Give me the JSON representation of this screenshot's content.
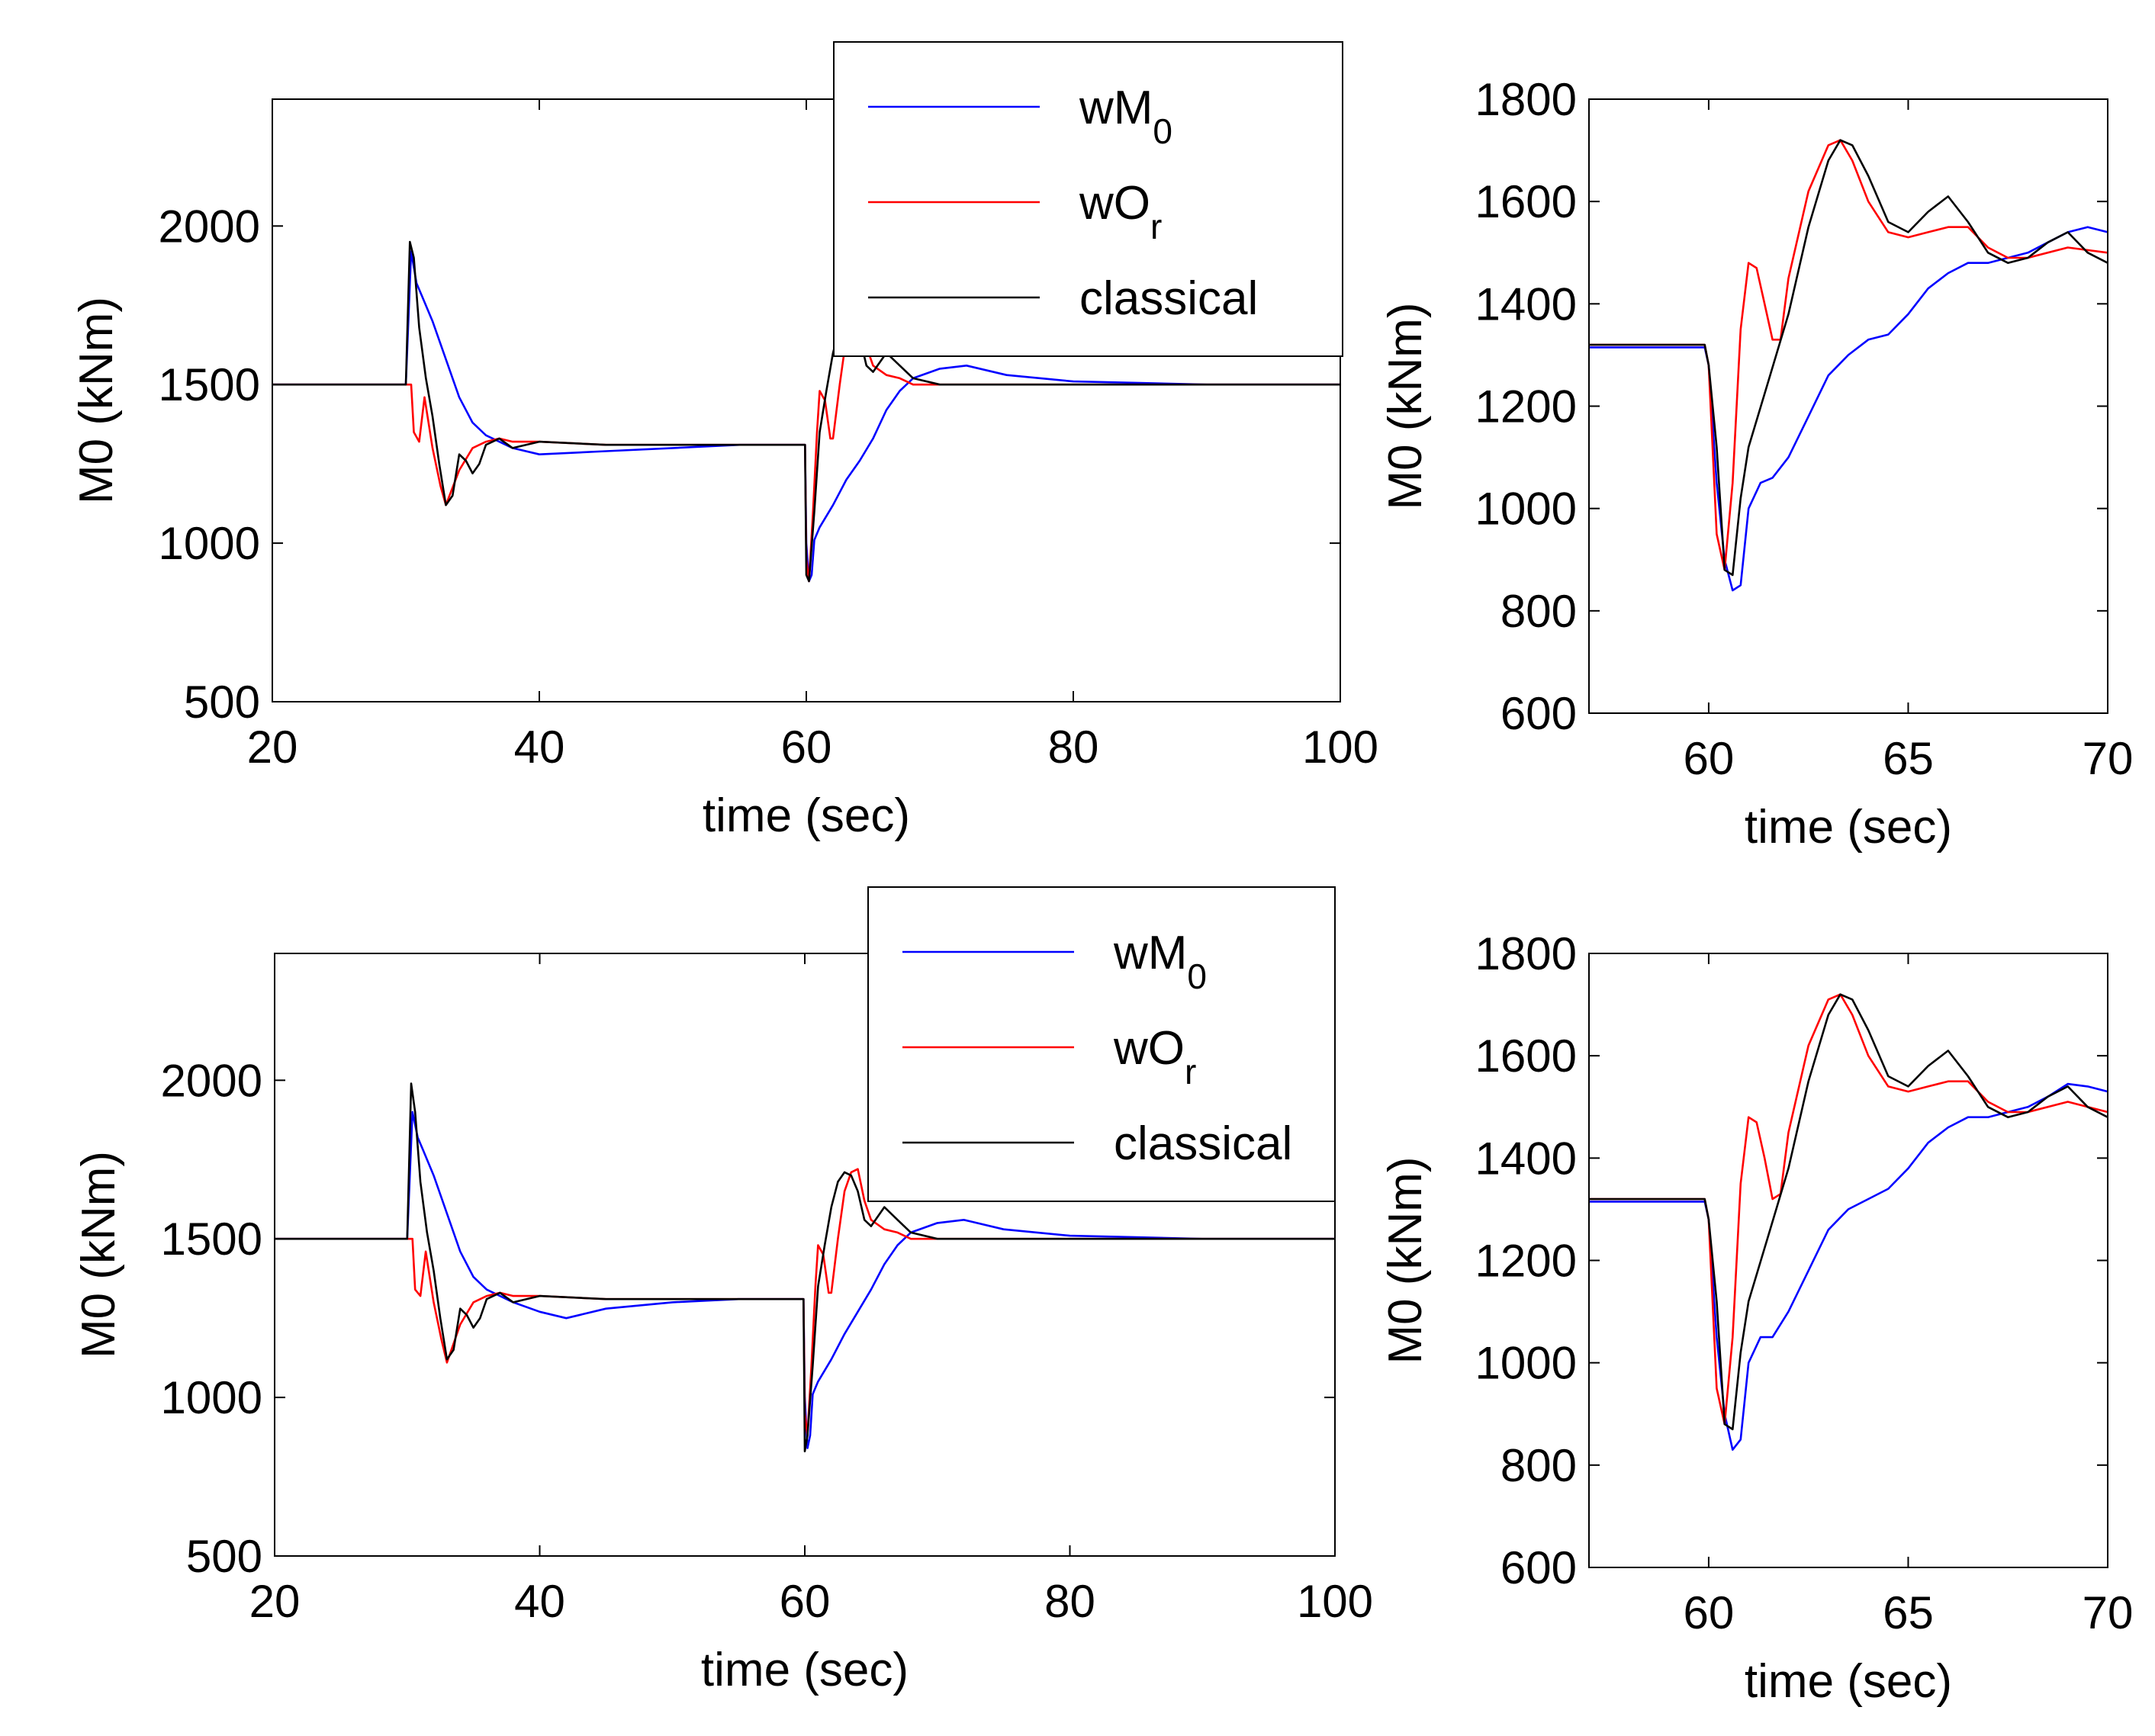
{
  "chart_data": [
    {
      "id": "top-main",
      "type": "line",
      "xlabel": "time (sec)",
      "ylabel": "M0 (kNm)",
      "xlim": [
        20,
        100
      ],
      "ylim": [
        500,
        2400
      ],
      "xticks": [
        20,
        40,
        60,
        80,
        100
      ],
      "yticks": [
        500,
        1000,
        1500,
        2000
      ],
      "legend": {
        "placement": "top-right",
        "entries": [
          {
            "base": "wM",
            "sub": "0",
            "color": "#0000ff"
          },
          {
            "base": "wO",
            "sub": "r",
            "color": "#ff0000"
          },
          {
            "base": "classical",
            "sub": "",
            "color": "#000000"
          }
        ]
      },
      "series": [
        {
          "name": "wM0",
          "color": "#0000ff",
          "x": [
            20,
            30,
            30.4,
            30.8,
            31.2,
            32,
            33,
            34,
            35,
            36,
            38,
            40,
            45,
            50,
            55,
            59.9,
            60,
            60.2,
            60.4,
            60.6,
            61,
            62,
            63,
            64,
            65,
            66,
            67,
            68,
            70,
            72,
            75,
            80,
            85,
            90,
            100
          ],
          "y": [
            1500,
            1500,
            1920,
            1820,
            1780,
            1700,
            1580,
            1460,
            1380,
            1340,
            1300,
            1280,
            1290,
            1300,
            1310,
            1310,
            1000,
            880,
            900,
            1010,
            1050,
            1120,
            1200,
            1260,
            1330,
            1420,
            1480,
            1520,
            1550,
            1560,
            1530,
            1510,
            1505,
            1500,
            1500
          ]
        },
        {
          "name": "wOr",
          "color": "#ff0000",
          "x": [
            20,
            30,
            30.4,
            30.6,
            31,
            31.4,
            32,
            32.6,
            33,
            34,
            35,
            36,
            37,
            38,
            40,
            45,
            50,
            55,
            59.9,
            60,
            60.2,
            60.5,
            60.8,
            61,
            61.4,
            61.8,
            62,
            62.5,
            63,
            63.5,
            64,
            64.5,
            65,
            66,
            67,
            68,
            70,
            75,
            80,
            90,
            100
          ],
          "y": [
            1500,
            1500,
            1500,
            1350,
            1320,
            1460,
            1300,
            1180,
            1120,
            1230,
            1300,
            1320,
            1330,
            1320,
            1320,
            1310,
            1310,
            1310,
            1310,
            950,
            880,
            1100,
            1350,
            1480,
            1450,
            1330,
            1330,
            1500,
            1650,
            1710,
            1720,
            1620,
            1560,
            1530,
            1520,
            1500,
            1500,
            1500,
            1500,
            1500,
            1500
          ]
        },
        {
          "name": "classical",
          "color": "#000000",
          "x": [
            20,
            29.8,
            30,
            30.3,
            30.6,
            31,
            31.5,
            32,
            32.5,
            33,
            33.5,
            34,
            34.5,
            35,
            35.5,
            36,
            37,
            38,
            40,
            45,
            50,
            55,
            59.9,
            60,
            60.2,
            60.6,
            61,
            61.5,
            62,
            62.5,
            63,
            63.5,
            64,
            64.5,
            65,
            66,
            67,
            68,
            70,
            75,
            80,
            90,
            100
          ],
          "y": [
            1500,
            1500,
            1500,
            1950,
            1900,
            1680,
            1520,
            1400,
            1250,
            1120,
            1150,
            1280,
            1260,
            1220,
            1250,
            1310,
            1330,
            1300,
            1320,
            1310,
            1310,
            1310,
            1310,
            900,
            880,
            1100,
            1350,
            1480,
            1600,
            1680,
            1710,
            1720,
            1650,
            1560,
            1540,
            1600,
            1560,
            1520,
            1500,
            1500,
            1500,
            1500,
            1500
          ]
        }
      ]
    },
    {
      "id": "top-zoom",
      "type": "line",
      "xlabel": "time (sec)",
      "ylabel": "M0 (kNm)",
      "xlim": [
        57,
        70
      ],
      "ylim": [
        600,
        1800
      ],
      "xticks": [
        60,
        65,
        70
      ],
      "yticks": [
        600,
        800,
        1000,
        1200,
        1400,
        1600,
        1800
      ],
      "series": [
        {
          "name": "wM0",
          "color": "#0000ff",
          "x": [
            57,
            59.9,
            60,
            60.2,
            60.4,
            60.6,
            60.8,
            61,
            61.3,
            61.6,
            62,
            62.5,
            63,
            63.5,
            64,
            64.5,
            65,
            65.5,
            66,
            66.5,
            67,
            67.5,
            68,
            68.5,
            69,
            69.5,
            70
          ],
          "y": [
            1315,
            1315,
            1280,
            1050,
            900,
            840,
            850,
            1000,
            1050,
            1060,
            1100,
            1180,
            1260,
            1300,
            1330,
            1340,
            1380,
            1430,
            1460,
            1480,
            1480,
            1490,
            1500,
            1520,
            1540,
            1550,
            1540
          ]
        },
        {
          "name": "wOr",
          "color": "#ff0000",
          "x": [
            57,
            59.9,
            60,
            60.2,
            60.4,
            60.6,
            60.8,
            61,
            61.2,
            61.4,
            61.6,
            61.8,
            62,
            62.5,
            63,
            63.3,
            63.6,
            64,
            64.5,
            65,
            65.5,
            66,
            66.5,
            67,
            67.5,
            68,
            69,
            70
          ],
          "y": [
            1320,
            1320,
            1280,
            950,
            880,
            1050,
            1350,
            1480,
            1470,
            1400,
            1330,
            1330,
            1450,
            1620,
            1710,
            1720,
            1680,
            1600,
            1540,
            1530,
            1540,
            1550,
            1550,
            1510,
            1490,
            1490,
            1510,
            1500
          ]
        },
        {
          "name": "classical",
          "color": "#000000",
          "x": [
            57,
            59.9,
            60,
            60.2,
            60.4,
            60.6,
            60.8,
            61,
            61.5,
            62,
            62.5,
            63,
            63.3,
            63.6,
            64,
            64.5,
            65,
            65.5,
            66,
            66.5,
            67,
            67.5,
            68,
            68.5,
            69,
            69.5,
            70
          ],
          "y": [
            1320,
            1320,
            1280,
            1120,
            880,
            870,
            1020,
            1120,
            1250,
            1380,
            1550,
            1680,
            1720,
            1710,
            1650,
            1560,
            1540,
            1580,
            1610,
            1560,
            1500,
            1480,
            1490,
            1520,
            1540,
            1500,
            1480
          ]
        }
      ]
    },
    {
      "id": "bottom-main",
      "type": "line",
      "xlabel": "time (sec)",
      "ylabel": "M0 (kNm)",
      "xlim": [
        20,
        100
      ],
      "ylim": [
        500,
        2400
      ],
      "xticks": [
        20,
        40,
        60,
        80,
        100
      ],
      "yticks": [
        500,
        1000,
        1500,
        2000
      ],
      "legend": {
        "placement": "top-right",
        "entries": [
          {
            "base": "wM",
            "sub": "0",
            "color": "#0000ff"
          },
          {
            "base": "wO",
            "sub": "r",
            "color": "#ff0000"
          },
          {
            "base": "classical",
            "sub": "",
            "color": "#000000"
          }
        ]
      },
      "series": [
        {
          "name": "wM0",
          "color": "#0000ff",
          "x": [
            20,
            30,
            30.4,
            30.8,
            31.2,
            32,
            33,
            34,
            35,
            36,
            38,
            40,
            42,
            45,
            50,
            55,
            59.9,
            60,
            60.2,
            60.4,
            60.6,
            61,
            62,
            63,
            64,
            65,
            66,
            67,
            68,
            70,
            72,
            75,
            80,
            85,
            90,
            100
          ],
          "y": [
            1500,
            1500,
            1900,
            1820,
            1780,
            1700,
            1580,
            1460,
            1380,
            1340,
            1300,
            1270,
            1250,
            1280,
            1300,
            1310,
            1310,
            1000,
            840,
            880,
            1010,
            1050,
            1120,
            1200,
            1270,
            1340,
            1420,
            1480,
            1520,
            1550,
            1560,
            1530,
            1510,
            1505,
            1500,
            1500
          ]
        },
        {
          "name": "wOr",
          "color": "#ff0000",
          "x": [
            20,
            30,
            30.4,
            30.6,
            31,
            31.4,
            32,
            32.6,
            33,
            34,
            35,
            36,
            37,
            38,
            40,
            45,
            50,
            55,
            59.9,
            60,
            60.2,
            60.5,
            60.8,
            61,
            61.4,
            61.8,
            62,
            62.5,
            63,
            63.5,
            64,
            64.5,
            65,
            66,
            67,
            68,
            70,
            75,
            80,
            90,
            100
          ],
          "y": [
            1500,
            1500,
            1500,
            1340,
            1320,
            1460,
            1300,
            1180,
            1110,
            1230,
            1300,
            1320,
            1330,
            1320,
            1320,
            1310,
            1310,
            1310,
            1310,
            950,
            880,
            1100,
            1350,
            1480,
            1450,
            1330,
            1330,
            1500,
            1650,
            1710,
            1720,
            1620,
            1560,
            1530,
            1520,
            1500,
            1500,
            1500,
            1500,
            1500,
            1500
          ]
        },
        {
          "name": "classical",
          "color": "#000000",
          "x": [
            20,
            29.8,
            30,
            30.3,
            30.6,
            31,
            31.5,
            32,
            32.5,
            33,
            33.5,
            34,
            34.5,
            35,
            35.5,
            36,
            37,
            38,
            40,
            45,
            50,
            55,
            59.9,
            60,
            60.2,
            60.6,
            61,
            61.5,
            62,
            62.5,
            63,
            63.5,
            64,
            64.5,
            65,
            66,
            67,
            68,
            70,
            75,
            80,
            90,
            100
          ],
          "y": [
            1500,
            1500,
            1500,
            1990,
            1900,
            1680,
            1520,
            1400,
            1250,
            1120,
            1150,
            1280,
            1260,
            1220,
            1250,
            1310,
            1330,
            1300,
            1320,
            1310,
            1310,
            1310,
            1310,
            830,
            880,
            1100,
            1350,
            1480,
            1600,
            1680,
            1710,
            1700,
            1650,
            1560,
            1540,
            1600,
            1560,
            1520,
            1500,
            1500,
            1500,
            1500,
            1500
          ]
        }
      ]
    },
    {
      "id": "bottom-zoom",
      "type": "line",
      "xlabel": "time (sec)",
      "ylabel": "M0 (kNm)",
      "xlim": [
        57,
        70
      ],
      "ylim": [
        600,
        1800
      ],
      "xticks": [
        60,
        65,
        70
      ],
      "yticks": [
        600,
        800,
        1000,
        1200,
        1400,
        1600,
        1800
      ],
      "series": [
        {
          "name": "wM0",
          "color": "#0000ff",
          "x": [
            57,
            59.9,
            60,
            60.2,
            60.4,
            60.6,
            60.8,
            61,
            61.3,
            61.6,
            62,
            62.5,
            63,
            63.5,
            64,
            64.5,
            65,
            65.5,
            66,
            66.5,
            67,
            67.5,
            68,
            68.5,
            69,
            69.5,
            70
          ],
          "y": [
            1315,
            1315,
            1280,
            1050,
            900,
            830,
            850,
            1000,
            1050,
            1050,
            1100,
            1180,
            1260,
            1300,
            1320,
            1340,
            1380,
            1430,
            1460,
            1480,
            1480,
            1490,
            1500,
            1520,
            1545,
            1540,
            1530
          ]
        },
        {
          "name": "wOr",
          "color": "#ff0000",
          "x": [
            57,
            59.9,
            60,
            60.2,
            60.4,
            60.6,
            60.8,
            61,
            61.2,
            61.4,
            61.6,
            61.8,
            62,
            62.5,
            63,
            63.3,
            63.6,
            64,
            64.5,
            65,
            65.5,
            66,
            66.5,
            67,
            67.5,
            68,
            69,
            70
          ],
          "y": [
            1320,
            1320,
            1280,
            950,
            880,
            1050,
            1350,
            1480,
            1470,
            1400,
            1320,
            1330,
            1450,
            1620,
            1710,
            1720,
            1680,
            1600,
            1540,
            1530,
            1540,
            1550,
            1550,
            1510,
            1490,
            1490,
            1510,
            1490
          ]
        },
        {
          "name": "classical",
          "color": "#000000",
          "x": [
            57,
            59.9,
            60,
            60.2,
            60.4,
            60.6,
            60.8,
            61,
            61.5,
            62,
            62.5,
            63,
            63.3,
            63.6,
            64,
            64.5,
            65,
            65.5,
            66,
            66.5,
            67,
            67.5,
            68,
            68.5,
            69,
            69.5,
            70
          ],
          "y": [
            1320,
            1320,
            1280,
            1120,
            880,
            870,
            1020,
            1120,
            1250,
            1380,
            1550,
            1680,
            1720,
            1710,
            1650,
            1560,
            1540,
            1580,
            1610,
            1560,
            1500,
            1480,
            1490,
            1520,
            1540,
            1500,
            1480
          ]
        }
      ]
    }
  ]
}
